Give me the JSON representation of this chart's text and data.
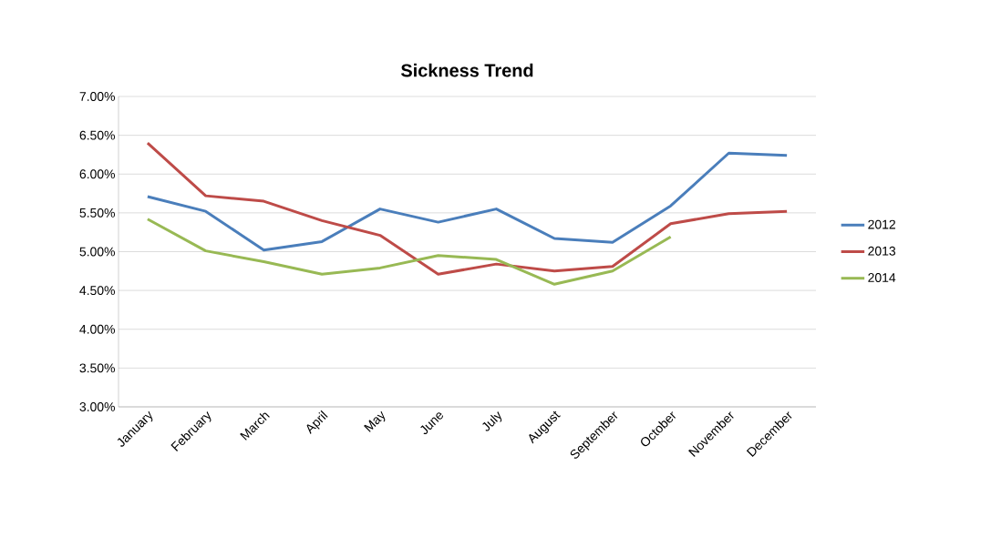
{
  "chart_data": {
    "type": "line",
    "title": "Sickness Trend",
    "categories": [
      "January",
      "February",
      "March",
      "April",
      "May",
      "June",
      "July",
      "August",
      "September",
      "October",
      "November",
      "December"
    ],
    "series": [
      {
        "name": "2012",
        "color": "#4a7ebb",
        "values": [
          5.71,
          5.52,
          5.02,
          5.13,
          5.55,
          5.38,
          5.55,
          5.17,
          5.12,
          5.59,
          6.27,
          6.24
        ]
      },
      {
        "name": "2013",
        "color": "#be4b48",
        "values": [
          6.4,
          5.72,
          5.65,
          5.4,
          5.21,
          4.71,
          4.84,
          4.75,
          4.81,
          5.36,
          5.49,
          5.52
        ]
      },
      {
        "name": "2014",
        "color": "#98b954",
        "values": [
          5.42,
          5.01,
          4.87,
          4.71,
          4.79,
          4.95,
          4.9,
          4.58,
          4.75,
          5.19,
          null,
          null
        ]
      }
    ],
    "ylim": [
      3,
      7
    ],
    "yticks": [
      {
        "value": 3,
        "label": "3.00%"
      },
      {
        "value": 3.5,
        "label": "3.50%"
      },
      {
        "value": 4,
        "label": "4.00%"
      },
      {
        "value": 4.5,
        "label": "4.50%"
      },
      {
        "value": 5,
        "label": "5.00%"
      },
      {
        "value": 5.5,
        "label": "5.50%"
      },
      {
        "value": 6,
        "label": "6.00%"
      },
      {
        "value": 6.5,
        "label": "6.50%"
      },
      {
        "value": 7,
        "label": "7.00%"
      }
    ],
    "grid": "y",
    "legend": "right",
    "marker": "none",
    "line_style": "solid"
  }
}
